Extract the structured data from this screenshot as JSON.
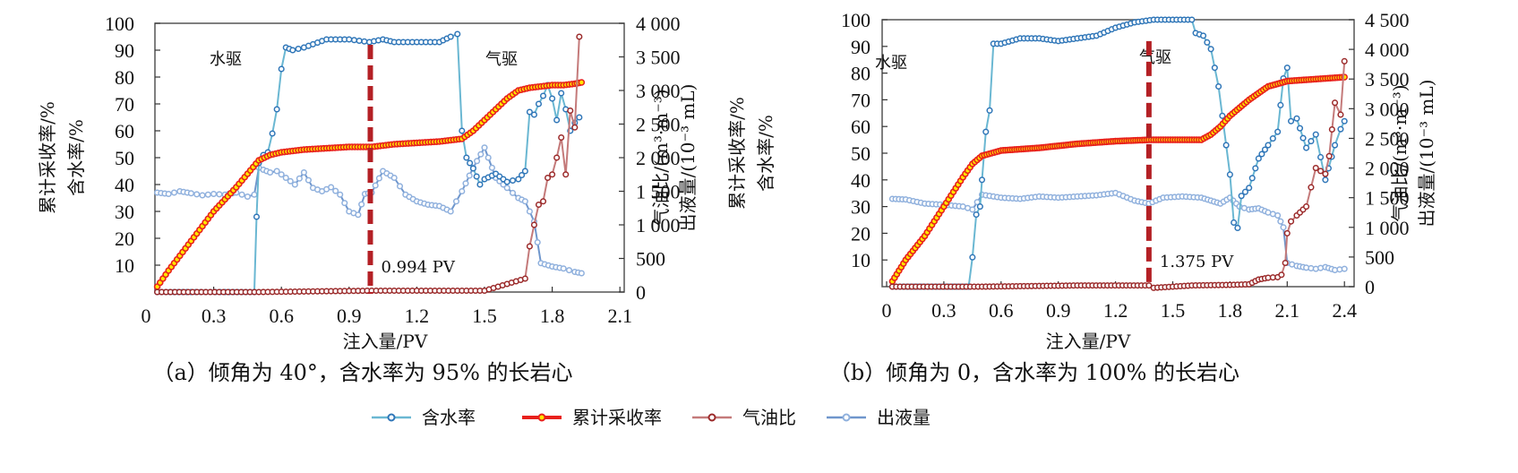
{
  "legend": [
    {
      "label": "含水率",
      "color": "#6ab7d2",
      "marker_color": "#2f76b8",
      "marker_fill": "#ffffff"
    },
    {
      "label": "累计采收率",
      "color": "#e8201c",
      "marker_color": "#e8201c",
      "marker_fill": "#ffe600"
    },
    {
      "label": "气油比",
      "color": "#c47a7a",
      "marker_color": "#9b2a2a",
      "marker_fill": "#ffffff"
    },
    {
      "label": "出液量",
      "color": "#6f96cc",
      "marker_color": "#8fb0dd",
      "marker_fill": "#ffffff"
    }
  ],
  "chart_data": [
    {
      "type": "line",
      "caption": "（a）倾角为 40°，含水率为 95% 的长岩心",
      "xlabel": "注入量/PV",
      "ylabel_left": [
        "累计采收率/%",
        "含水率/%"
      ],
      "ylabel_right": [
        "气油比/(m³·m⁻³)",
        "出液量/(10⁻³ mL)"
      ],
      "xlim": [
        0,
        2.1
      ],
      "xticks": [
        "0",
        "0.3",
        "0.6",
        "0.9",
        "1.2",
        "1.5",
        "1.8",
        "2.1"
      ],
      "ylim_left": [
        0,
        100
      ],
      "yticks_left": [
        "10",
        "20",
        "30",
        "40",
        "50",
        "60",
        "70",
        "80",
        "90",
        "100"
      ],
      "ylim_right": [
        0,
        4000
      ],
      "yticks_right": [
        "0",
        "500",
        "1 000",
        "1 500",
        "2 000",
        "2 500",
        "3 000",
        "3 500",
        "4 000"
      ],
      "annotations": {
        "water_drive": "水驱",
        "gas_drive": "气驱",
        "switch_label": "0.994 PV",
        "switch_x": 0.994
      },
      "series": [
        {
          "name": "含水率",
          "axis": "left",
          "x": [
            0.05,
            0.2,
            0.35,
            0.48,
            0.49,
            0.5,
            0.52,
            0.54,
            0.56,
            0.58,
            0.6,
            0.62,
            0.65,
            0.7,
            0.8,
            0.9,
            0.99,
            1.05,
            1.1,
            1.2,
            1.3,
            1.35,
            1.38,
            1.4,
            1.42,
            1.45,
            1.48,
            1.5,
            1.55,
            1.6,
            1.65,
            1.68,
            1.7,
            1.72,
            1.74,
            1.76,
            1.78,
            1.8,
            1.82,
            1.84,
            1.86,
            1.88,
            1.9,
            1.92
          ],
          "y": [
            0,
            0,
            0,
            0,
            28,
            48,
            51,
            52,
            59,
            68,
            83,
            91,
            90,
            91,
            94,
            94,
            93,
            94,
            93,
            93,
            93,
            95,
            96,
            60,
            50,
            46,
            40,
            42,
            44,
            41,
            42,
            45,
            67,
            66,
            70,
            73,
            77,
            72,
            64,
            74,
            68,
            60,
            63,
            65
          ]
        },
        {
          "name": "累计采收率",
          "axis": "left",
          "x": [
            0.05,
            0.1,
            0.2,
            0.3,
            0.4,
            0.45,
            0.5,
            0.55,
            0.6,
            0.7,
            0.8,
            0.9,
            1.0,
            1.1,
            1.2,
            1.3,
            1.4,
            1.45,
            1.5,
            1.55,
            1.6,
            1.65,
            1.7,
            1.75,
            1.8,
            1.85,
            1.9,
            1.93
          ],
          "y": [
            2,
            8,
            19,
            30,
            39,
            44,
            49,
            51,
            52,
            53,
            53.5,
            54,
            54,
            55,
            55.5,
            56,
            57,
            60,
            64,
            68,
            72,
            75,
            76,
            76.5,
            77,
            77,
            77.5,
            78
          ]
        },
        {
          "name": "气油比",
          "axis": "right",
          "x": [
            0.05,
            0.5,
            1.0,
            1.5,
            1.56,
            1.6,
            1.64,
            1.68,
            1.7,
            1.72,
            1.74,
            1.76,
            1.78,
            1.8,
            1.82,
            1.84,
            1.86,
            1.88,
            1.9,
            1.92
          ],
          "y": [
            0,
            0,
            20,
            20,
            80,
            120,
            160,
            200,
            680,
            1000,
            1300,
            1350,
            1700,
            1750,
            2000,
            2300,
            1750,
            2700,
            2450,
            3800
          ]
        },
        {
          "name": "出液量",
          "axis": "right",
          "x": [
            0.05,
            0.1,
            0.15,
            0.2,
            0.25,
            0.3,
            0.35,
            0.4,
            0.45,
            0.48,
            0.5,
            0.52,
            0.55,
            0.58,
            0.62,
            0.66,
            0.7,
            0.74,
            0.78,
            0.82,
            0.86,
            0.9,
            0.94,
            0.97,
            1.0,
            1.05,
            1.1,
            1.15,
            1.2,
            1.25,
            1.3,
            1.35,
            1.4,
            1.45,
            1.5,
            1.55,
            1.6,
            1.65,
            1.68,
            1.7,
            1.72,
            1.75,
            1.8,
            1.85,
            1.9,
            1.93
          ],
          "y": [
            1480,
            1460,
            1500,
            1470,
            1440,
            1460,
            1450,
            1480,
            1420,
            1450,
            1850,
            1820,
            1780,
            1800,
            1700,
            1600,
            1780,
            1550,
            1500,
            1560,
            1450,
            1200,
            1150,
            1460,
            1480,
            1800,
            1700,
            1450,
            1350,
            1300,
            1280,
            1200,
            1500,
            1850,
            2150,
            1700,
            1550,
            1400,
            1350,
            1200,
            1050,
            430,
            380,
            350,
            300,
            280
          ]
        }
      ]
    },
    {
      "type": "line",
      "caption": "（b）倾角为 0，含水率为 100% 的长岩心",
      "xlabel": "注入量/PV",
      "ylabel_left": [
        "累计采收率/%",
        "含水率/%"
      ],
      "ylabel_right": [
        "气油比/(m³·m⁻³)",
        "出液量/(10⁻³ mL)"
      ],
      "xlim": [
        0,
        2.4
      ],
      "xticks": [
        "0",
        "0.3",
        "0.6",
        "0.9",
        "1.2",
        "1.5",
        "1.8",
        "2.1",
        "2.4"
      ],
      "ylim_left": [
        0,
        100
      ],
      "yticks_left": [
        "10",
        "20",
        "30",
        "40",
        "50",
        "60",
        "70",
        "80",
        "90",
        "100"
      ],
      "ylim_right": [
        0,
        4500
      ],
      "yticks_right": [
        "0",
        "500",
        "1 000",
        "1 500",
        "2 000",
        "2 500",
        "3 000",
        "3 500",
        "4 000",
        "4 500"
      ],
      "annotations": {
        "water_drive": "水驱",
        "gas_drive": "气驱",
        "switch_label": "1.375 PV",
        "switch_x": 1.375
      },
      "series": [
        {
          "name": "含水率",
          "axis": "left",
          "x": [
            0.03,
            0.2,
            0.43,
            0.45,
            0.47,
            0.49,
            0.5,
            0.52,
            0.54,
            0.56,
            0.6,
            0.7,
            0.8,
            0.9,
            1.0,
            1.1,
            1.2,
            1.3,
            1.4,
            1.5,
            1.6,
            1.62,
            1.66,
            1.7,
            1.74,
            1.76,
            1.78,
            1.8,
            1.82,
            1.84,
            1.86,
            1.9,
            1.95,
            2.0,
            2.05,
            2.08,
            2.1,
            2.12,
            2.15,
            2.2,
            2.25,
            2.3,
            2.35,
            2.38,
            2.4
          ],
          "y": [
            0,
            0,
            0,
            11,
            27,
            30,
            40,
            58,
            66,
            91,
            91,
            93,
            93,
            92,
            93,
            94,
            97,
            99,
            100,
            100,
            100,
            95,
            94,
            89,
            75,
            64,
            53,
            42,
            24,
            22,
            34,
            37,
            48,
            53,
            58,
            78,
            82,
            62,
            63,
            52,
            57,
            40,
            53,
            59,
            62
          ]
        },
        {
          "name": "累计采收率",
          "axis": "left",
          "x": [
            0.03,
            0.1,
            0.2,
            0.3,
            0.4,
            0.45,
            0.5,
            0.55,
            0.6,
            0.8,
            1.0,
            1.2,
            1.375,
            1.5,
            1.65,
            1.7,
            1.75,
            1.8,
            1.9,
            2.0,
            2.1,
            2.2,
            2.3,
            2.4
          ],
          "y": [
            2,
            10,
            19,
            30,
            41,
            46,
            49,
            50,
            51,
            52,
            53.5,
            54.5,
            55,
            55,
            55,
            57,
            60,
            64,
            70,
            75,
            77,
            77.5,
            78,
            78.5
          ]
        },
        {
          "name": "气油比",
          "axis": "right",
          "x": [
            0.03,
            0.5,
            1.0,
            1.375,
            1.4,
            1.6,
            1.8,
            1.9,
            1.95,
            2.0,
            2.05,
            2.07,
            2.09,
            2.1,
            2.12,
            2.15,
            2.2,
            2.25,
            2.3,
            2.32,
            2.35,
            2.38,
            2.4
          ],
          "y": [
            0,
            0,
            20,
            20,
            -20,
            20,
            30,
            40,
            120,
            150,
            160,
            200,
            400,
            900,
            1100,
            1200,
            1350,
            2000,
            1900,
            2200,
            3100,
            2900,
            3800
          ]
        },
        {
          "name": "出液量",
          "axis": "right",
          "x": [
            0.03,
            0.1,
            0.2,
            0.3,
            0.4,
            0.45,
            0.5,
            0.6,
            0.7,
            0.8,
            0.9,
            1.0,
            1.1,
            1.2,
            1.3,
            1.375,
            1.45,
            1.55,
            1.65,
            1.7,
            1.75,
            1.8,
            1.85,
            1.9,
            1.95,
            2.0,
            2.05,
            2.08,
            2.1,
            2.15,
            2.2,
            2.25,
            2.3,
            2.35,
            2.4
          ],
          "y": [
            1480,
            1470,
            1400,
            1380,
            1350,
            1300,
            1550,
            1500,
            1480,
            1520,
            1500,
            1520,
            1540,
            1580,
            1450,
            1400,
            1500,
            1520,
            1500,
            1450,
            1400,
            1500,
            1350,
            1300,
            1320,
            1250,
            1200,
            1000,
            400,
            350,
            320,
            300,
            330,
            280,
            300
          ]
        }
      ]
    }
  ]
}
